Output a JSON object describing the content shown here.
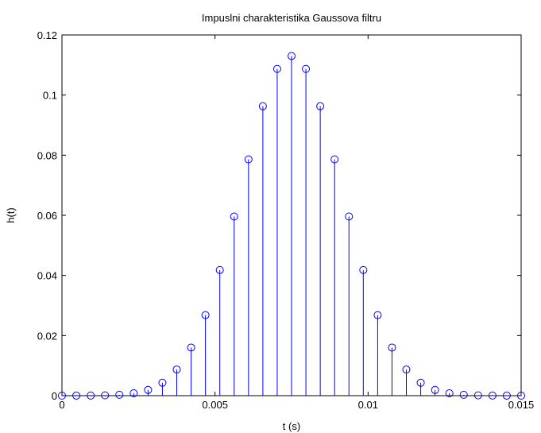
{
  "chart_data": {
    "type": "stem",
    "title": "Impuslni charakteristika Gaussova filtru",
    "xlabel": "t (s)",
    "ylabel": "h(t)",
    "x": [
      0,
      0.000469,
      0.000938,
      0.001406,
      0.001875,
      0.002344,
      0.002813,
      0.003281,
      0.00375,
      0.004219,
      0.004688,
      0.005156,
      0.005625,
      0.006094,
      0.006563,
      0.007031,
      0.0075,
      0.007969,
      0.008438,
      0.008906,
      0.009375,
      0.009844,
      0.010313,
      0.010781,
      0.01125,
      0.011719,
      0.012188,
      0.012656,
      0.013125,
      0.013594,
      0.014063,
      0.014531,
      0.015
    ],
    "series": [
      {
        "color": "#0000ff",
        "values": [
          0,
          1e-05,
          3e-05,
          0.0001,
          0.0003,
          0.0008,
          0.0019,
          0.0043,
          0.0087,
          0.016,
          0.0268,
          0.0418,
          0.0596,
          0.0786,
          0.0963,
          0.1087,
          0.113,
          0.1087,
          0.0963,
          0.0786,
          0.0596,
          0.0418,
          0.0268,
          0.016,
          0.0087,
          0.0043,
          0.0019,
          0.0008,
          0.0003,
          0.0001,
          3e-05,
          1e-05,
          0
        ]
      }
    ],
    "xlim": [
      0,
      0.015
    ],
    "xticks": [
      0,
      0.005,
      0.01,
      0.015
    ],
    "ylim": [
      0,
      0.12
    ],
    "yticks": [
      0,
      0.02,
      0.04,
      0.06,
      0.08,
      0.1,
      0.12
    ],
    "grid": false
  }
}
